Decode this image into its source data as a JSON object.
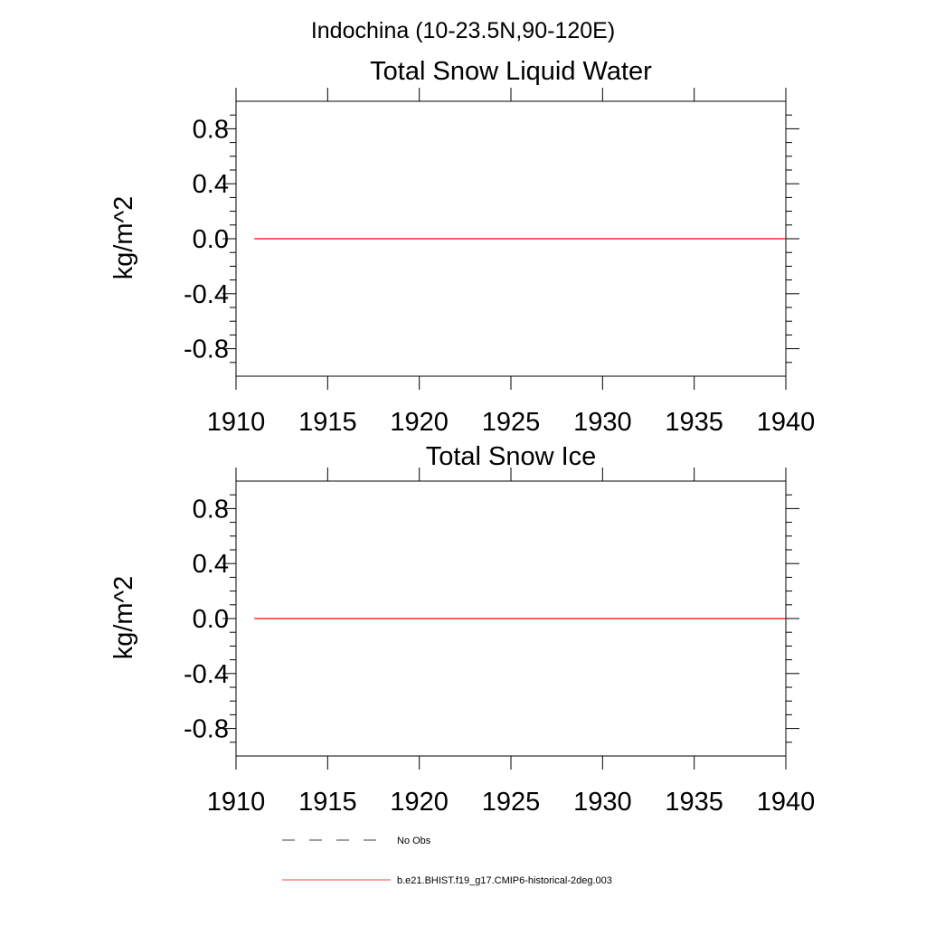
{
  "figure": {
    "title": "Indochina (10-23.5N,90-120E)"
  },
  "chart_data": [
    {
      "type": "line",
      "title": "Total Snow Liquid Water",
      "xlabel": "",
      "ylabel": "kg/m^2",
      "xlim": [
        1910,
        1940
      ],
      "ylim": [
        -1.0,
        1.0
      ],
      "xticks": [
        1910,
        1915,
        1920,
        1925,
        1930,
        1935,
        1940
      ],
      "xtick_labels": [
        "1910",
        "1915",
        "1920",
        "1925",
        "1930",
        "1935",
        "1940"
      ],
      "yticks": [
        0.8,
        0.4,
        0.0,
        -0.4,
        -0.8
      ],
      "ytick_labels": [
        "0.8",
        "0.4",
        "0.0",
        "-0.4",
        "-0.8"
      ],
      "grid": false,
      "series": [
        {
          "name": "b.e21.BHIST.f19_g17.CMIP6-historical-2deg.003",
          "color": "#ff0000",
          "x": [
            1911,
            1940
          ],
          "values": [
            0.0,
            0.0
          ]
        }
      ]
    },
    {
      "type": "line",
      "title": "Total Snow Ice",
      "xlabel": "",
      "ylabel": "kg/m^2",
      "xlim": [
        1910,
        1940
      ],
      "ylim": [
        -1.0,
        1.0
      ],
      "xticks": [
        1910,
        1915,
        1920,
        1925,
        1930,
        1935,
        1940
      ],
      "xtick_labels": [
        "1910",
        "1915",
        "1920",
        "1925",
        "1930",
        "1935",
        "1940"
      ],
      "yticks": [
        0.8,
        0.4,
        0.0,
        -0.4,
        -0.8
      ],
      "ytick_labels": [
        "0.8",
        "0.4",
        "0.0",
        "-0.4",
        "-0.8"
      ],
      "grid": false,
      "series": [
        {
          "name": "b.e21.BHIST.f19_g17.CMIP6-historical-2deg.003",
          "color": "#ff0000",
          "x": [
            1911,
            1940
          ],
          "values": [
            0.0,
            0.0
          ]
        }
      ]
    }
  ],
  "legend": {
    "placement": "bottom",
    "items": [
      {
        "label": "No Obs",
        "color": "#000000",
        "style": "dashed"
      },
      {
        "label": "b.e21.BHIST.f19_g17.CMIP6-historical-2deg.003",
        "color": "#ff0000",
        "style": "solid"
      }
    ]
  }
}
